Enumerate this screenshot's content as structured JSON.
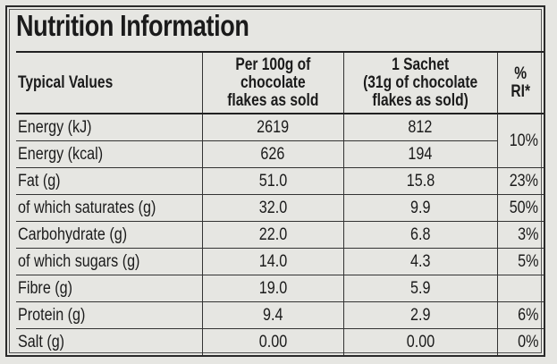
{
  "title": "Nutrition Information",
  "headers": {
    "typical": "Typical Values",
    "per100": [
      "Per 100g of",
      "chocolate",
      "flakes as sold"
    ],
    "sachet": [
      "1 Sachet",
      "(31g of chocolate",
      "flakes as sold)"
    ],
    "ri": [
      "%",
      "RI*"
    ]
  },
  "rows": [
    {
      "label": "Energy (kJ)",
      "per100": "2619",
      "sachet": "812",
      "ri": "10%"
    },
    {
      "label": "Energy (kcal)",
      "per100": "626",
      "sachet": "194",
      "ri": ""
    },
    {
      "label": "Fat (g)",
      "per100": "51.0",
      "sachet": "15.8",
      "ri": "23%"
    },
    {
      "label": "of which saturates (g)",
      "per100": "32.0",
      "sachet": "9.9",
      "ri": "50%"
    },
    {
      "label": "Carbohydrate (g)",
      "per100": "22.0",
      "sachet": "6.8",
      "ri": "3%"
    },
    {
      "label": "of which sugars (g)",
      "per100": "14.0",
      "sachet": "4.3",
      "ri": "5%"
    },
    {
      "label": "Fibre (g)",
      "per100": "19.0",
      "sachet": "5.9",
      "ri": ""
    },
    {
      "label": "Protein (g)",
      "per100": "9.4",
      "sachet": "2.9",
      "ri": "6%"
    },
    {
      "label": "Salt (g)",
      "per100": "0.00",
      "sachet": "0.00",
      "ri": "0%"
    }
  ]
}
